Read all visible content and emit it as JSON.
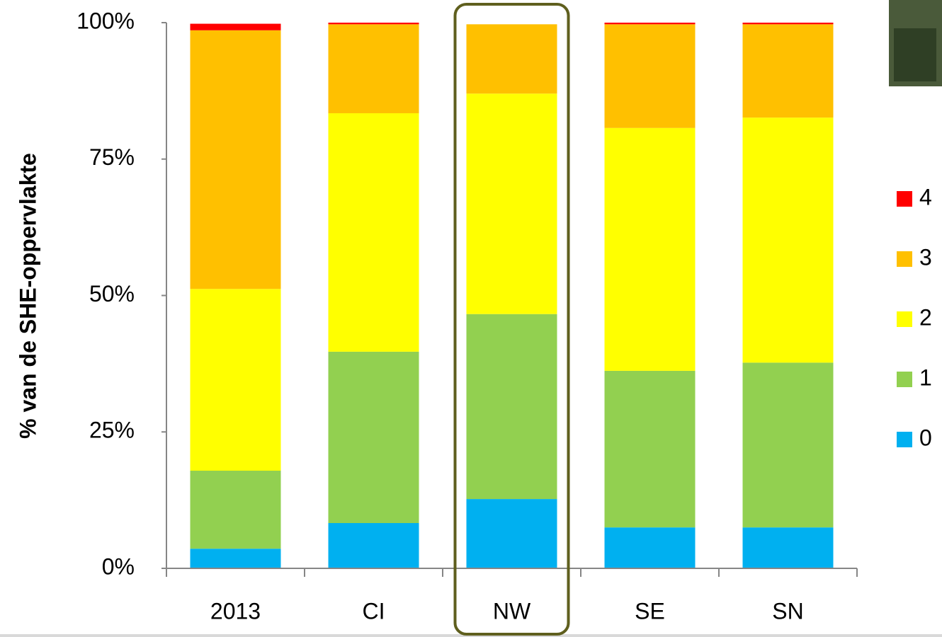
{
  "chart_data": {
    "type": "stacked-bar",
    "y_label": "% van de SHE-oppervlakte",
    "categories": [
      "2013",
      "CI",
      "NW",
      "SE",
      "SN"
    ],
    "series": [
      {
        "name": "0",
        "color": "#00b0f0",
        "values": [
          3.6,
          8.3,
          12.7,
          7.5,
          7.5
        ]
      },
      {
        "name": "1",
        "color": "#92d050",
        "values": [
          14.3,
          31.4,
          33.9,
          28.7,
          30.2
        ]
      },
      {
        "name": "2",
        "color": "#ffff00",
        "values": [
          33.3,
          43.7,
          40.4,
          44.5,
          44.9
        ]
      },
      {
        "name": "3",
        "color": "#ffc000",
        "values": [
          47.4,
          16.3,
          12.7,
          19.0,
          17.1
        ]
      },
      {
        "name": "4",
        "color": "#ff0000",
        "values": [
          1.2,
          0.3,
          0,
          0.3,
          0.3
        ]
      }
    ],
    "ylim": [
      0,
      100
    ],
    "yticks": [
      {
        "value": 0,
        "label": "0%"
      },
      {
        "value": 25,
        "label": "25%"
      },
      {
        "value": 50,
        "label": "50%"
      },
      {
        "value": 75,
        "label": "75%"
      },
      {
        "value": 100,
        "label": "100%"
      }
    ]
  }
}
